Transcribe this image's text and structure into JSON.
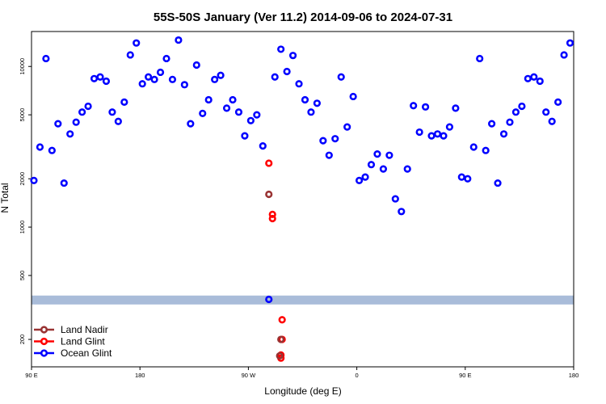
{
  "chart_data": {
    "type": "scatter",
    "title": "55S-50S January (Ver 11.2)   2014-09-06 to 2024-07-31",
    "xlabel": "Longitude (deg E)",
    "ylabel": "N Total",
    "x_ticks": [
      {
        "value": 90,
        "label": "90 E"
      },
      {
        "value": 180,
        "label": "180"
      },
      {
        "value": 270,
        "label": "90 W"
      },
      {
        "value": 360,
        "label": "0"
      },
      {
        "value": 450,
        "label": "90 E"
      },
      {
        "value": 540,
        "label": "180"
      }
    ],
    "xlim": [
      90,
      540
    ],
    "y_scale": "log",
    "y_ticks": [
      200,
      500,
      1000,
      2000,
      5000,
      10000
    ],
    "ylim": [
      135,
      16500
    ],
    "highlight_band": {
      "y_range": [
        330,
        375
      ],
      "color": "#a9bcd9"
    },
    "legend": {
      "position": "bottom-left",
      "entries": [
        {
          "name": "Land Nadir",
          "color": "#993333"
        },
        {
          "name": "Land Glint",
          "color": "#ff0000"
        },
        {
          "name": "Ocean Glint",
          "color": "#0000ff"
        }
      ]
    },
    "series": [
      {
        "name": "Land Nadir",
        "color": "#993333",
        "points": [
          [
            287,
            1600
          ],
          [
            297,
            200
          ],
          [
            296,
            158
          ]
        ]
      },
      {
        "name": "Land Glint",
        "color": "#ff0000",
        "points": [
          [
            287,
            2500
          ],
          [
            290,
            1200
          ],
          [
            290,
            1130
          ],
          [
            298,
            265
          ],
          [
            298,
            200
          ],
          [
            297,
            160
          ],
          [
            297,
            153
          ]
        ]
      },
      {
        "name": "Ocean Glint",
        "color": "#0000ff",
        "points": [
          [
            92,
            1950
          ],
          [
            97,
            3150
          ],
          [
            102,
            11200
          ],
          [
            107,
            3000
          ],
          [
            112,
            4400
          ],
          [
            117,
            1880
          ],
          [
            122,
            3800
          ],
          [
            127,
            4500
          ],
          [
            132,
            5200
          ],
          [
            137,
            5650
          ],
          [
            142,
            8400
          ],
          [
            147,
            8600
          ],
          [
            152,
            8100
          ],
          [
            157,
            5200
          ],
          [
            162,
            4550
          ],
          [
            167,
            6000
          ],
          [
            172,
            11800
          ],
          [
            177,
            14000
          ],
          [
            182,
            7800
          ],
          [
            187,
            8600
          ],
          [
            192,
            8300
          ],
          [
            197,
            9200
          ],
          [
            202,
            11200
          ],
          [
            207,
            8300
          ],
          [
            212,
            14600
          ],
          [
            217,
            7700
          ],
          [
            222,
            4400
          ],
          [
            227,
            10200
          ],
          [
            232,
            5100
          ],
          [
            237,
            6200
          ],
          [
            242,
            8300
          ],
          [
            247,
            8800
          ],
          [
            252,
            5500
          ],
          [
            257,
            6200
          ],
          [
            262,
            5200
          ],
          [
            267,
            3700
          ],
          [
            272,
            4600
          ],
          [
            277,
            5000
          ],
          [
            282,
            3200
          ],
          [
            287,
            355
          ],
          [
            292,
            8600
          ],
          [
            297,
            12800
          ],
          [
            302,
            9300
          ],
          [
            307,
            11700
          ],
          [
            312,
            7800
          ],
          [
            317,
            6200
          ],
          [
            322,
            5200
          ],
          [
            327,
            5900
          ],
          [
            332,
            3450
          ],
          [
            337,
            2800
          ],
          [
            342,
            3550
          ],
          [
            347,
            8600
          ],
          [
            352,
            4200
          ],
          [
            357,
            6500
          ],
          [
            362,
            1950
          ],
          [
            367,
            2050
          ],
          [
            372,
            2450
          ],
          [
            377,
            2850
          ],
          [
            382,
            2300
          ],
          [
            387,
            2800
          ],
          [
            392,
            1500
          ],
          [
            397,
            1250
          ],
          [
            402,
            2300
          ],
          [
            407,
            5700
          ],
          [
            412,
            3900
          ],
          [
            417,
            5600
          ],
          [
            422,
            3700
          ],
          [
            427,
            3800
          ],
          [
            432,
            3700
          ],
          [
            437,
            4200
          ],
          [
            442,
            5500
          ],
          [
            447,
            2050
          ],
          [
            452,
            2000
          ],
          [
            457,
            3150
          ],
          [
            462,
            11200
          ],
          [
            467,
            3000
          ],
          [
            472,
            4400
          ],
          [
            477,
            1880
          ],
          [
            482,
            3800
          ],
          [
            487,
            4500
          ],
          [
            492,
            5200
          ],
          [
            497,
            5650
          ],
          [
            502,
            8400
          ],
          [
            507,
            8600
          ],
          [
            512,
            8100
          ],
          [
            517,
            5200
          ],
          [
            522,
            4550
          ],
          [
            527,
            6000
          ],
          [
            532,
            11800
          ],
          [
            537,
            14000
          ]
        ]
      }
    ]
  }
}
